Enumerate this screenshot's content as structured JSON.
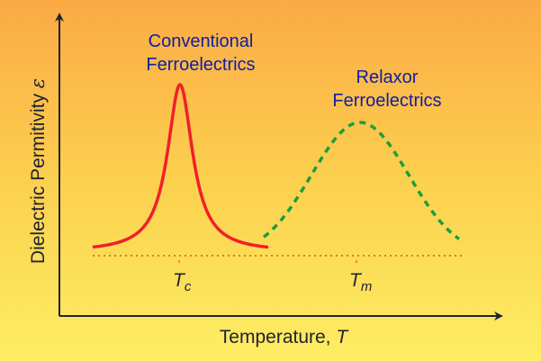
{
  "diagram": {
    "y_axis_label": "Dielectric Permitivity",
    "y_axis_symbol": "ε",
    "x_axis_label": "Temperature, ",
    "x_axis_symbol": "T",
    "curves": [
      {
        "name": "Conventional Ferroelectrics",
        "label_lines": [
          "Conventional",
          "Ferroelectrics"
        ],
        "shape": "sharp peak",
        "style": "solid",
        "color": "#f0202a",
        "peak_label": "T",
        "peak_subscript": "c"
      },
      {
        "name": "Relaxor Ferroelectrics",
        "label_lines": [
          "Relaxor",
          "Ferroelectrics"
        ],
        "shape": "broad peak",
        "style": "dashed",
        "color": "#1aa03a",
        "peak_label": "T",
        "peak_subscript": "m"
      }
    ],
    "baseline_color": "#f06a30",
    "label_color": "#1020a0",
    "axis_color": "#222233"
  }
}
